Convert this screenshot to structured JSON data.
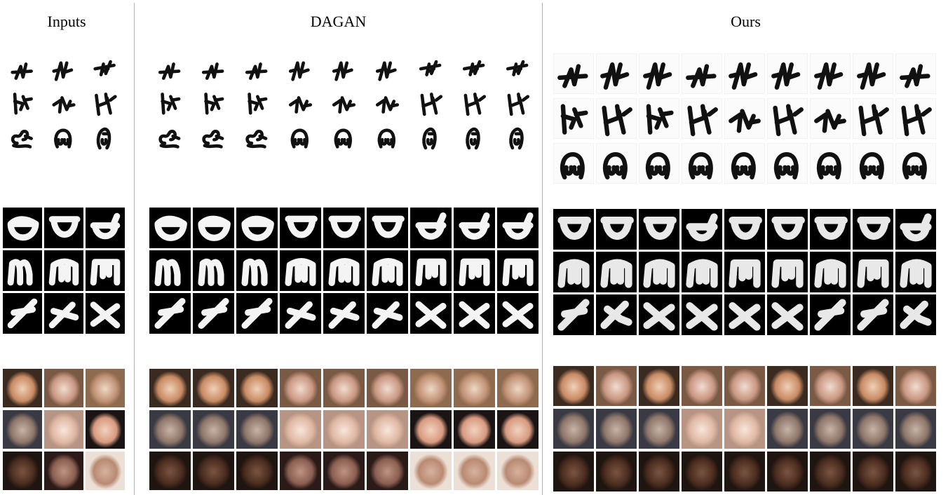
{
  "columns": {
    "inputs": {
      "title": "Inputs"
    },
    "dagan": {
      "title": "DAGAN"
    },
    "ours": {
      "title": "Ours"
    }
  },
  "sections": {
    "handwritten": {
      "glyph_rows": [
        "tick",
        "zha",
        "loop"
      ],
      "inputs": [
        [
          "tick-a",
          "tick-b",
          "tick-c"
        ],
        [
          "zha-a",
          "zha-b",
          "zha-c"
        ],
        [
          "loop-a",
          "loop-b",
          "loop-c"
        ]
      ],
      "dagan": [
        [
          "tick-a",
          "tick-a",
          "tick-a",
          "tick-b",
          "tick-b",
          "tick-b",
          "tick-c",
          "tick-c",
          "tick-c"
        ],
        [
          "zha-a",
          "zha-a",
          "zha-a",
          "zha-b",
          "zha-b",
          "zha-b",
          "zha-c",
          "zha-c",
          "zha-c"
        ],
        [
          "loop-a",
          "loop-a",
          "loop-a",
          "loop-b",
          "loop-b",
          "loop-b",
          "loop-c",
          "loop-c",
          "loop-c"
        ]
      ],
      "ours": [
        [
          "tick-a",
          "tick-b",
          "tick-b",
          "tick-a",
          "tick-b",
          "tick-b",
          "tick-b",
          "tick-b",
          "tick-a"
        ],
        [
          "zha-a",
          "zha-c",
          "zha-a",
          "zha-c",
          "zha-b",
          "zha-c",
          "zha-b",
          "zha-c",
          "zha-c"
        ],
        [
          "loop-b",
          "loop-b",
          "loop-b",
          "loop-b",
          "loop-b",
          "loop-b",
          "loop-b",
          "loop-b",
          "loop-b"
        ]
      ]
    },
    "omniglot": {
      "inputs": [
        [
          "cup-a",
          "cup-b",
          "cup-c"
        ],
        [
          "m-a",
          "m-b",
          "m-c"
        ],
        [
          "x-a",
          "x-b",
          "x-c"
        ]
      ],
      "dagan": [
        [
          "cup-a",
          "cup-a",
          "cup-a",
          "cup-b",
          "cup-b",
          "cup-b",
          "cup-c",
          "cup-c",
          "cup-c"
        ],
        [
          "m-a",
          "m-a",
          "m-a",
          "m-b",
          "m-b",
          "m-b",
          "m-c",
          "m-c",
          "m-c"
        ],
        [
          "x-a",
          "x-a",
          "x-a",
          "x-b",
          "x-b",
          "x-b",
          "x-c",
          "x-c",
          "x-c"
        ]
      ],
      "ours": [
        [
          "cup-b",
          "cup-b",
          "cup-b",
          "cup-c",
          "cup-b",
          "cup-b",
          "cup-b",
          "cup-b",
          "cup-c"
        ],
        [
          "m-b",
          "m-b",
          "m-b",
          "m-b",
          "m-c",
          "m-c",
          "m-b",
          "m-c",
          "m-b"
        ],
        [
          "x-a",
          "x-d",
          "x-c",
          "x-c",
          "x-c",
          "x-c",
          "x-a",
          "x-a",
          "x-d"
        ]
      ]
    },
    "faces": {
      "inputs": [
        [
          "glasses",
          "smile",
          "smile2"
        ],
        [
          "beard",
          "bald",
          "bald2"
        ],
        [
          "dark",
          "dark2",
          "redlip"
        ]
      ],
      "dagan": [
        [
          "glasses",
          "glasses",
          "glasses",
          "smile",
          "smile",
          "smile",
          "smile2",
          "smile2",
          "smile2"
        ],
        [
          "beard",
          "beard",
          "beard",
          "bald",
          "bald",
          "bald",
          "bald2",
          "bald2",
          "bald2"
        ],
        [
          "dark",
          "dark",
          "dark",
          "dark2",
          "dark2",
          "dark2",
          "redlip",
          "redlip",
          "redlip"
        ]
      ],
      "ours": [
        [
          "glasses",
          "smile",
          "glasses",
          "smile",
          "smile",
          "glasses",
          "smile",
          "glasses",
          "smile"
        ],
        [
          "beard",
          "beard",
          "beard",
          "bald",
          "bald",
          "beard",
          "beard",
          "beard",
          "beard"
        ],
        [
          "dark",
          "dark",
          "dark",
          "dark",
          "dark",
          "dark",
          "dark",
          "dark",
          "dark"
        ]
      ]
    }
  },
  "face_colors": {
    "glasses": [
      "#c88a63",
      "#3a2a20",
      "#f0d0b8"
    ],
    "smile": [
      "#c99782",
      "#7a5a45",
      "#f1dccf"
    ],
    "smile2": [
      "#c29377",
      "#8e6a4e",
      "#eed7c5"
    ],
    "beard": [
      "#8e7669",
      "#3a3a44",
      "#c7b3a7"
    ],
    "bald": [
      "#e0b8a4",
      "#b89484",
      "#f7e6dc"
    ],
    "bald2": [
      "#d89a80",
      "#1a1414",
      "#f2d2c0"
    ],
    "dark": [
      "#4a2c1e",
      "#1e1410",
      "#7a5442"
    ],
    "dark2": [
      "#8a5e50",
      "#2a1a18",
      "#c09484"
    ],
    "redlip": [
      "#b98a72",
      "#ece0d6",
      "#d7b29e"
    ]
  }
}
